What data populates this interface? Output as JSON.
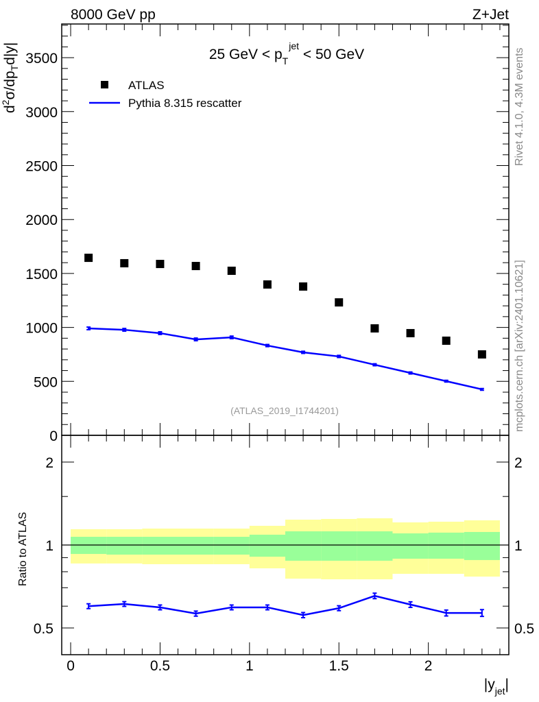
{
  "header": {
    "left": "8000 GeV pp",
    "right": "Z+Jet"
  },
  "side_labels": {
    "rivet": "Rivet 4.1.0,  4.3M events",
    "mcplots": "mcplots.cern.ch [arXiv:2401.10621]"
  },
  "watermark": "(ATLAS_2019_I1744201)",
  "chart_data": [
    {
      "type": "scatter",
      "title_parts": {
        "pre": "25 GeV < p",
        "sub": "T",
        "sup": "jet",
        "post": " < 50 GeV"
      },
      "ylabel_parts": {
        "a": "d",
        "sup": "2",
        "b": "σ/dp",
        "sub": "T",
        "c": "d|y|"
      },
      "xlim": [
        -0.05,
        2.45
      ],
      "ylim": [
        0,
        3812
      ],
      "yticks": [
        0,
        500,
        1000,
        1500,
        2000,
        2500,
        3000,
        3500
      ],
      "ytick_labels": [
        "0",
        "500",
        "1000",
        "1500",
        "2000",
        "2500",
        "3000",
        "3500"
      ],
      "x": [
        0.1,
        0.3,
        0.5,
        0.7,
        0.9,
        1.1,
        1.3,
        1.5,
        1.7,
        1.9,
        2.1,
        2.3
      ],
      "series": [
        {
          "name": "ATLAS",
          "color": "#000000",
          "marker": "square",
          "values": [
            1645,
            1595,
            1588,
            1569,
            1525,
            1398,
            1379,
            1232,
            991,
            947,
            877,
            750
          ]
        },
        {
          "name": "Pythia 8.315 rescatter",
          "color": "#0000ff",
          "marker": "line",
          "values": [
            991,
            978,
            947,
            889,
            908,
            832,
            769,
            731,
            654,
            578,
            502,
            426
          ],
          "errors": [
            12,
            12,
            12,
            12,
            12,
            10,
            10,
            10,
            9,
            9,
            8,
            8
          ]
        }
      ],
      "legend": "top-left"
    },
    {
      "type": "line",
      "ylabel": "Ratio to ATLAS",
      "xlabel_parts": {
        "a": "|y",
        "sub": "jet",
        "b": "|"
      },
      "yscale": "log",
      "xlim": [
        -0.05,
        2.45
      ],
      "ylim": [
        0.4,
        2.5
      ],
      "xticks": [
        0,
        0.5,
        1,
        1.5,
        2
      ],
      "xtick_labels": [
        "0",
        "0.5",
        "1",
        "1.5",
        "2"
      ],
      "yticks": [
        0.5,
        1,
        2
      ],
      "ytick_labels": [
        "0.5",
        "1",
        "2"
      ],
      "bin_edges": [
        0,
        0.2,
        0.4,
        0.6,
        0.8,
        1.0,
        1.2,
        1.4,
        1.6,
        1.8,
        2.0,
        2.2,
        2.4
      ],
      "band_total": {
        "color": "#ffff99",
        "upper": [
          1.141,
          1.141,
          1.147,
          1.147,
          1.147,
          1.174,
          1.236,
          1.243,
          1.25,
          1.208,
          1.215,
          1.229
        ],
        "lower": [
          0.857,
          0.857,
          0.852,
          0.852,
          0.852,
          0.823,
          0.755,
          0.751,
          0.751,
          0.786,
          0.786,
          0.768
        ]
      },
      "band_stat": {
        "color": "#99ff99",
        "upper": [
          1.071,
          1.071,
          1.071,
          1.071,
          1.071,
          1.09,
          1.121,
          1.121,
          1.121,
          1.102,
          1.109,
          1.115
        ],
        "lower": [
          0.928,
          0.923,
          0.923,
          0.923,
          0.923,
          0.907,
          0.877,
          0.877,
          0.877,
          0.892,
          0.892,
          0.882
        ]
      },
      "x": [
        0.1,
        0.3,
        0.5,
        0.7,
        0.9,
        1.1,
        1.3,
        1.5,
        1.7,
        1.9,
        2.1,
        2.3
      ],
      "series": [
        {
          "name": "Pythia 8.315 rescatter / ATLAS",
          "color": "#0000ff",
          "values": [
            0.6,
            0.611,
            0.594,
            0.564,
            0.594,
            0.594,
            0.557,
            0.59,
            0.654,
            0.608,
            0.567,
            0.567
          ],
          "errors": [
            0.012,
            0.012,
            0.012,
            0.012,
            0.012,
            0.012,
            0.012,
            0.012,
            0.015,
            0.014,
            0.014,
            0.016
          ]
        }
      ]
    }
  ]
}
